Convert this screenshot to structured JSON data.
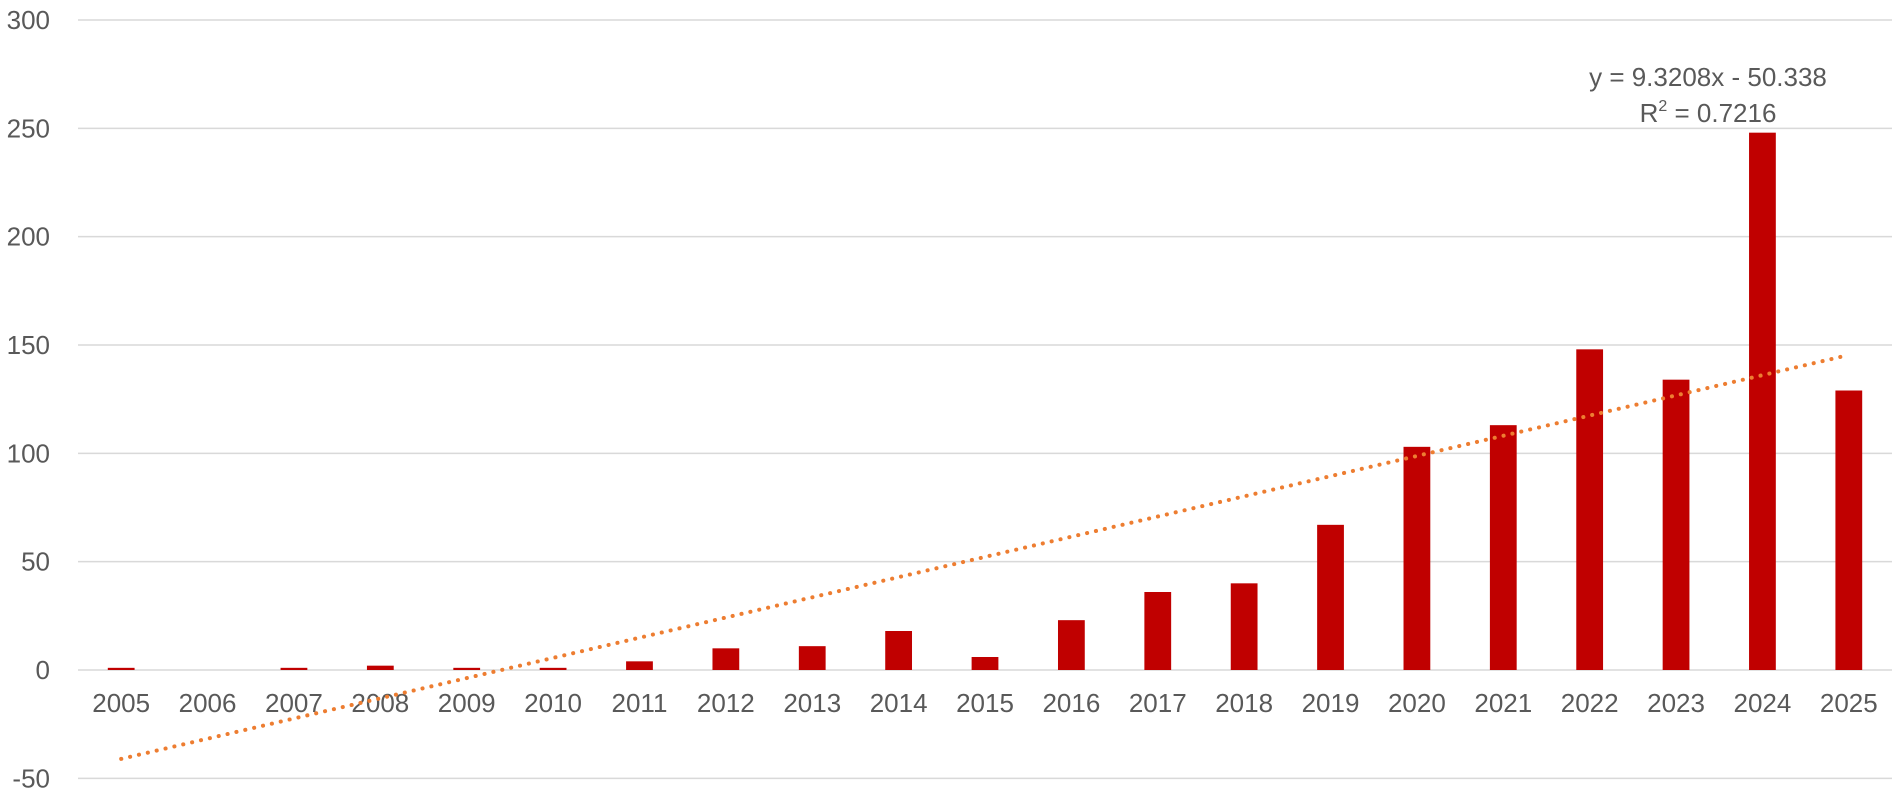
{
  "chart_data": {
    "type": "bar",
    "title": "",
    "xlabel": "",
    "ylabel": "",
    "categories": [
      "2005",
      "2006",
      "2007",
      "2008",
      "2009",
      "2010",
      "2011",
      "2012",
      "2013",
      "2014",
      "2015",
      "2016",
      "2017",
      "2018",
      "2019",
      "2020",
      "2021",
      "2022",
      "2023",
      "2024",
      "2025"
    ],
    "series": [
      {
        "values": [
          1,
          0,
          1,
          2,
          1,
          1,
          4,
          10,
          11,
          18,
          6,
          23,
          36,
          40,
          67,
          103,
          113,
          148,
          134,
          248,
          129
        ]
      }
    ],
    "ylim": [
      -50,
      300
    ],
    "yticks": [
      -50,
      0,
      50,
      100,
      150,
      200,
      250,
      300
    ],
    "grid": true,
    "legend": "none",
    "trendline": {
      "type": "linear",
      "slope": 9.3208,
      "intercept": -50.338,
      "style": "dotted",
      "equation_label": "y = 9.3208x - 50.338",
      "r2_prefix": "R",
      "r2_superscript": "2",
      "r2_value_text": " = 0.7216"
    },
    "colors": {
      "bar": "#c00000",
      "trend": "#ed7d31",
      "grid": "#d9d9d9",
      "text": "#595959"
    }
  }
}
